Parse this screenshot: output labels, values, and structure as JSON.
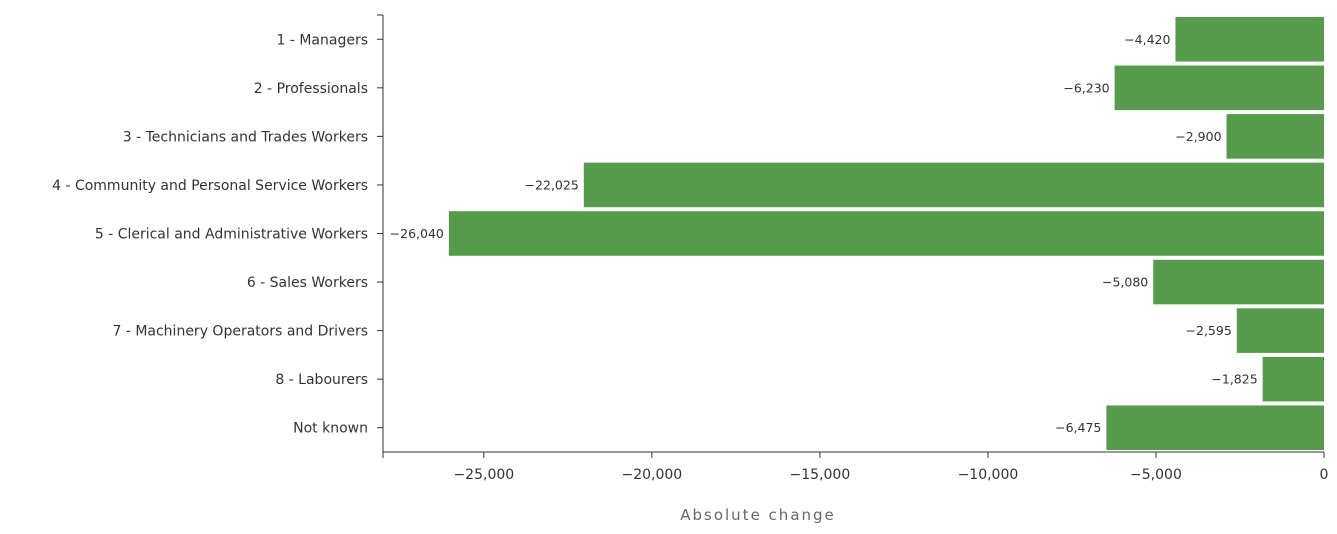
{
  "chart_data": {
    "type": "bar",
    "orientation": "horizontal",
    "categories": [
      "1 - Managers",
      "2 - Professionals",
      "3 - Technicians and Trades Workers",
      "4 - Community and Personal Service Workers",
      "5 - Clerical and Administrative Workers",
      "6 - Sales Workers",
      "7 - Machinery Operators and Drivers",
      "8 - Labourers",
      "Not known"
    ],
    "values": [
      -4420,
      -6230,
      -2900,
      -22025,
      -26040,
      -5080,
      -2595,
      -1825,
      -6475
    ],
    "value_labels": [
      "−4,420",
      "−6,230",
      "−2,900",
      "−22,025",
      "−26,040",
      "−5,080",
      "−2,595",
      "−1,825",
      "−6,475"
    ],
    "xlabel": "Absolute change",
    "ylabel": "",
    "xlim": [
      -28000,
      0
    ],
    "xticks": [
      -25000,
      -20000,
      -15000,
      -10000,
      -5000,
      0
    ],
    "xtick_labels": [
      "−25,000",
      "−20,000",
      "−15,000",
      "−10,000",
      "−5,000",
      "0"
    ],
    "bar_color": "#559b4b",
    "grid": false,
    "legend": "none"
  }
}
